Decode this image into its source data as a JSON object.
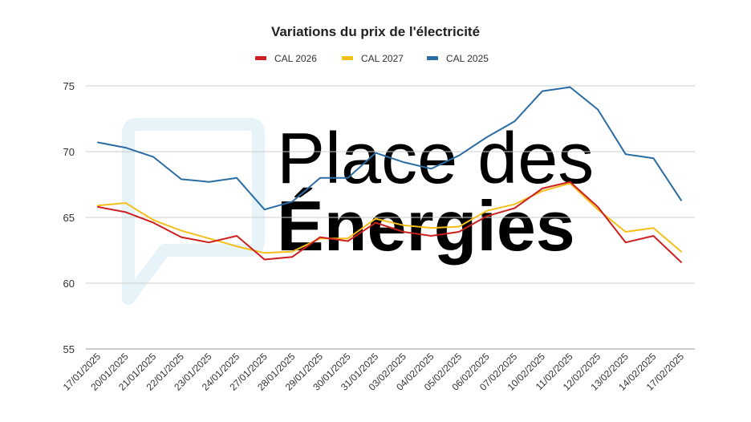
{
  "watermark": {
    "line1": "Place des",
    "line2": "Énergies",
    "color": "#e8f4f8"
  },
  "chart_data": {
    "type": "line",
    "title": "Variations du prix de l'électricité",
    "xlabel": "",
    "ylabel": "",
    "ylim": [
      55,
      75
    ],
    "yticks": [
      55,
      60,
      65,
      70,
      75
    ],
    "grid": true,
    "legend_position": "top-center",
    "categories": [
      "17/01/2025",
      "20/01/2025",
      "21/01/2025",
      "22/01/2025",
      "23/01/2025",
      "24/01/2025",
      "27/01/2025",
      "28/01/2025",
      "29/01/2025",
      "30/01/2025",
      "31/01/2025",
      "03/02/2025",
      "04/02/2025",
      "05/02/2025",
      "06/02/2025",
      "07/02/2025",
      "10/02/2025",
      "11/02/2025",
      "12/02/2025",
      "13/02/2025",
      "14/02/2025",
      "17/02/2025"
    ],
    "series": [
      {
        "name": "CAL 2026",
        "color": "#cc1f1f",
        "values": [
          65.8,
          65.4,
          64.6,
          63.5,
          63.1,
          63.6,
          61.8,
          62.0,
          63.5,
          63.2,
          64.6,
          63.9,
          63.6,
          63.9,
          65.1,
          65.7,
          67.2,
          67.7,
          65.8,
          63.1,
          63.6,
          61.6
        ]
      },
      {
        "name": "CAL 2027",
        "color": "#f6be19",
        "values": [
          65.9,
          66.1,
          64.8,
          64.0,
          63.4,
          62.8,
          62.3,
          62.4,
          63.4,
          63.4,
          64.9,
          64.4,
          64.2,
          64.3,
          65.5,
          66.0,
          67.0,
          67.6,
          65.6,
          63.9,
          64.2,
          62.4
        ]
      },
      {
        "name": "CAL 2025",
        "color": "#2b6ca3",
        "values": [
          70.7,
          70.3,
          69.6,
          67.9,
          67.7,
          68.0,
          65.6,
          66.2,
          68.0,
          68.0,
          69.9,
          69.2,
          68.7,
          69.7,
          71.1,
          72.3,
          74.6,
          74.9,
          73.2,
          69.8,
          69.5,
          66.3
        ]
      }
    ]
  }
}
